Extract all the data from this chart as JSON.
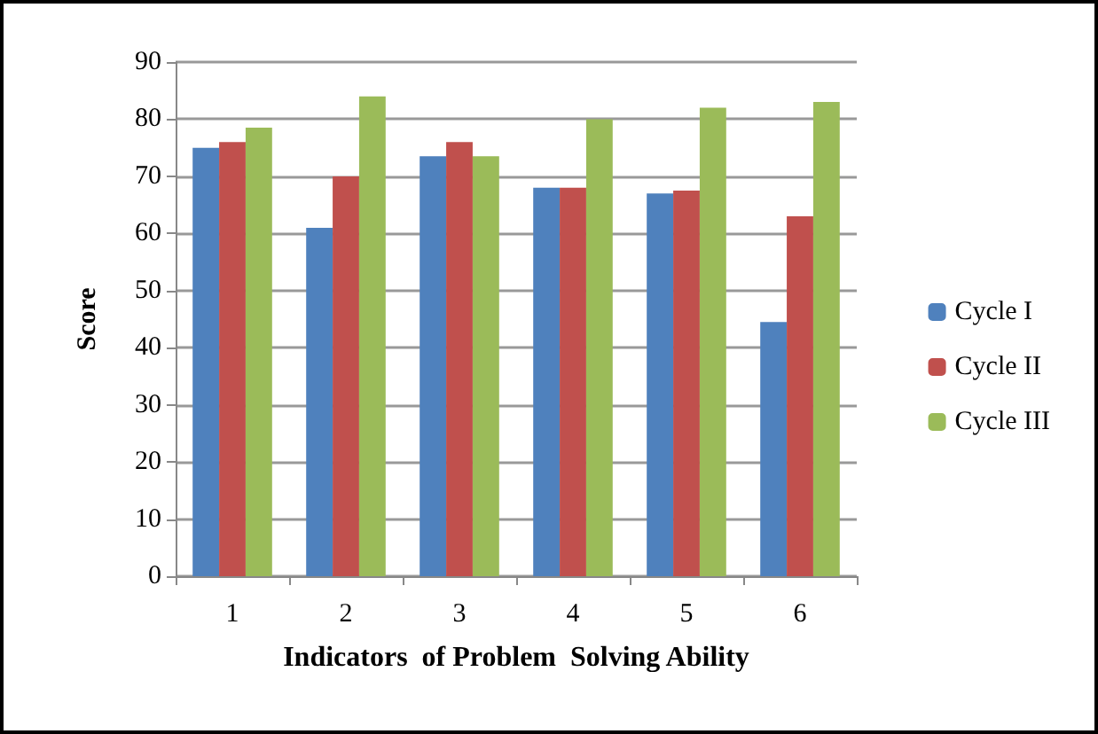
{
  "chart_data": {
    "type": "bar",
    "xlabel": "Indicators  of Problem  Solving Ability",
    "ylabel": "Score",
    "categories": [
      "1",
      "2",
      "3",
      "4",
      "5",
      "6"
    ],
    "series": [
      {
        "name": "Cycle I",
        "color": "#4f81bd",
        "values": [
          75,
          61,
          73.5,
          68,
          67,
          44.5
        ]
      },
      {
        "name": "Cycle II",
        "color": "#c0504d",
        "values": [
          76,
          70,
          76,
          68,
          67.5,
          63
        ]
      },
      {
        "name": "Cycle III",
        "color": "#9bbb59",
        "values": [
          78.5,
          84,
          73.5,
          80,
          82,
          83
        ]
      }
    ],
    "ylim": [
      0,
      90
    ],
    "yticks": [
      0,
      10,
      20,
      30,
      40,
      50,
      60,
      70,
      80,
      90
    ],
    "grid": "y",
    "legend": "right"
  }
}
